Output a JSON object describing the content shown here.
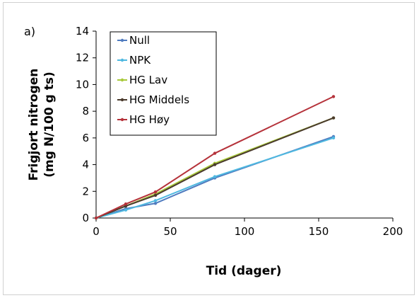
{
  "chart_data": {
    "type": "line",
    "panel_label": "a)",
    "xlabel": "Tid (dager)",
    "ylabel_line1": "Frigjort nitrogen",
    "ylabel_line2": "(mg N/100 g ts)",
    "xlim": [
      0,
      200
    ],
    "ylim": [
      0,
      14
    ],
    "x_ticks": [
      0,
      50,
      100,
      150,
      200
    ],
    "y_ticks": [
      0,
      2,
      4,
      6,
      8,
      10,
      12,
      14
    ],
    "grid": false,
    "legend_position": "top-left",
    "x": [
      0,
      20,
      40,
      80,
      160
    ],
    "series": [
      {
        "name": "Null",
        "color": "#4f7bbf",
        "values": [
          0,
          0.7,
          1.1,
          3.0,
          6.1
        ]
      },
      {
        "name": "NPK",
        "color": "#4fb8e0",
        "values": [
          0,
          0.6,
          1.3,
          3.1,
          6.0
        ]
      },
      {
        "name": "HG Lav",
        "color": "#a8c93a",
        "values": [
          0,
          0.9,
          1.8,
          4.1,
          7.5
        ]
      },
      {
        "name": "HG Middels",
        "color": "#4a3a2c",
        "values": [
          0,
          0.9,
          1.7,
          4.0,
          7.5
        ]
      },
      {
        "name": "HG Høy",
        "color": "#b5323a",
        "values": [
          0,
          1.05,
          1.95,
          4.85,
          9.1
        ]
      }
    ]
  }
}
